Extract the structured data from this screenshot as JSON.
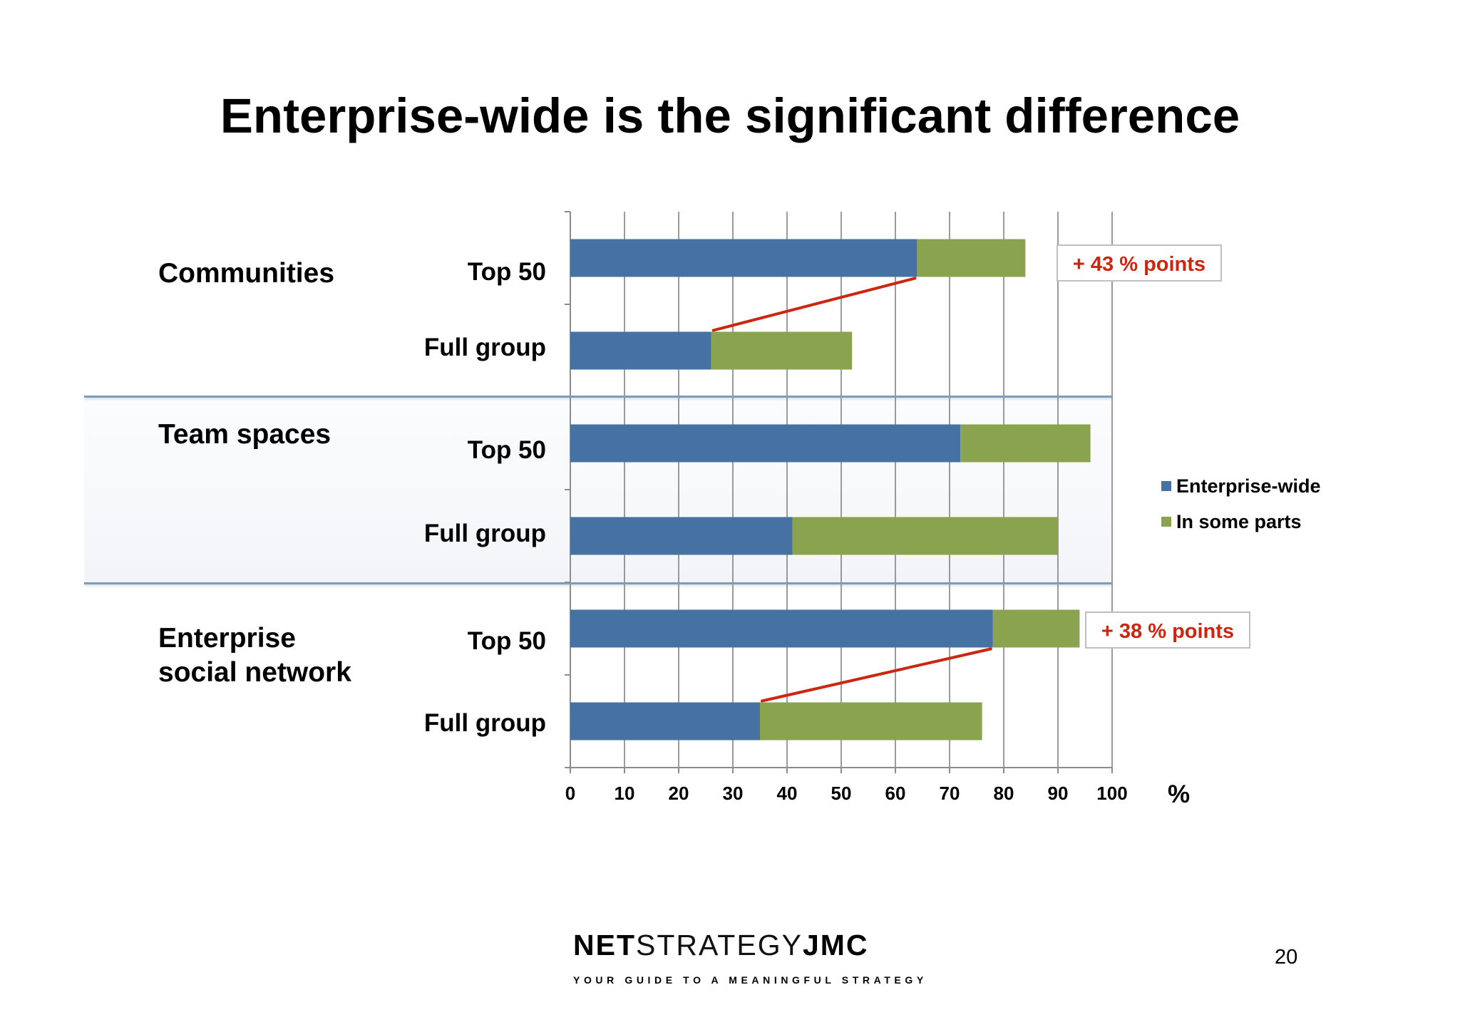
{
  "slide": {
    "title": "Enterprise-wide is the significant difference",
    "page_number": "20",
    "logo": {
      "part1": "NET",
      "part2": "STRATEGY",
      "part3": "JMC"
    },
    "tagline": "YOUR GUIDE TO A MEANINGFUL STRATEGY"
  },
  "groups": [
    {
      "label": "Communities"
    },
    {
      "label": "Team spaces"
    },
    {
      "label_line1": "Enterprise",
      "label_line2": "social network"
    }
  ],
  "callouts": [
    "+ 43 % points",
    "+ 38 % points"
  ],
  "chart_data": {
    "type": "bar",
    "orientation": "horizontal",
    "stacked": true,
    "categories": [
      "Top 50",
      "Full group",
      "Top 50",
      "Full group",
      "Top 50",
      "Full group"
    ],
    "series": [
      {
        "name": "Enterprise-wide",
        "values": [
          64,
          26,
          72,
          41,
          78,
          35
        ],
        "color": "#4572a2"
      },
      {
        "name": "In some parts",
        "values": [
          20,
          26,
          24,
          49,
          16,
          41
        ],
        "color": "#8aa34f"
      }
    ],
    "xlim": [
      0,
      100
    ],
    "xticks": [
      "0",
      "10",
      "20",
      "30",
      "40",
      "50",
      "60",
      "70",
      "80",
      "90",
      "100"
    ],
    "xlabel": "%",
    "grid": true,
    "legend_position": "right",
    "difference_lines": [
      {
        "from_category_index": 0,
        "to_category_index": 1,
        "from_value": 64,
        "to_value": 26,
        "color": "#cc2510"
      },
      {
        "from_category_index": 4,
        "to_category_index": 5,
        "from_value": 78,
        "to_value": 35,
        "color": "#cc2510"
      }
    ]
  }
}
